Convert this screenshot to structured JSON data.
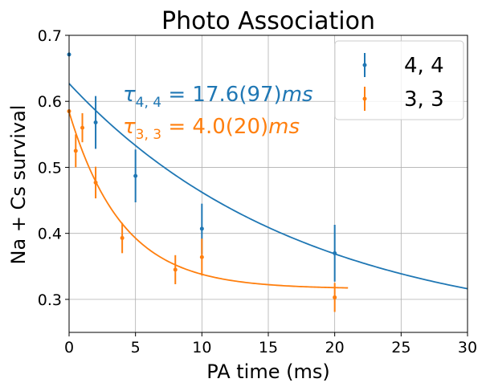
{
  "chart_data": {
    "type": "scatter",
    "title": "Photo Association",
    "xlabel": "PA time (ms)",
    "ylabel": "Na + Cs survival",
    "xlim": [
      0,
      30
    ],
    "ylim": [
      0.25,
      0.7
    ],
    "xticks": [
      0,
      5,
      10,
      15,
      20,
      25,
      30
    ],
    "yticks": [
      0.3,
      0.4,
      0.5,
      0.6,
      0.7
    ],
    "xtick_labels": [
      "0",
      "5",
      "10",
      "15",
      "20",
      "25",
      "30"
    ],
    "ytick_labels": [
      "0.3",
      "0.4",
      "0.5",
      "0.6",
      "0.7"
    ],
    "grid": true,
    "legend": "top-right",
    "series": [
      {
        "name": "4, 4",
        "color": "#1f77b4",
        "points": [
          {
            "x": 0,
            "y": 0.671,
            "err": 0.0
          },
          {
            "x": 2,
            "y": 0.568,
            "err": 0.04
          },
          {
            "x": 5,
            "y": 0.487,
            "err": 0.04
          },
          {
            "x": 10,
            "y": 0.407,
            "err": 0.038
          },
          {
            "x": 20,
            "y": 0.37,
            "err": 0.043
          }
        ],
        "fit": {
          "A": 0.38,
          "tau": 17.6,
          "C": 0.247,
          "xmax": 30
        },
        "annotation_label": "τ",
        "annotation_sub": "4, 4",
        "annotation_value": " = 17.6(97)",
        "annotation_unit": "ms"
      },
      {
        "name": "3, 3",
        "color": "#ff7f0e",
        "points": [
          {
            "x": 0,
            "y": 0.585,
            "err": 0.0
          },
          {
            "x": 0.5,
            "y": 0.525,
            "err": 0.025
          },
          {
            "x": 1,
            "y": 0.56,
            "err": 0.022
          },
          {
            "x": 2,
            "y": 0.477,
            "err": 0.024
          },
          {
            "x": 4,
            "y": 0.393,
            "err": 0.023
          },
          {
            "x": 8,
            "y": 0.345,
            "err": 0.022
          },
          {
            "x": 10,
            "y": 0.364,
            "err": 0.028
          },
          {
            "x": 20,
            "y": 0.303,
            "err": 0.022
          }
        ],
        "fit": {
          "A": 0.268,
          "tau": 4.0,
          "C": 0.316,
          "xmax": 21
        },
        "annotation_label": "τ",
        "annotation_sub": "3, 3",
        "annotation_value": " = 4.0(20)",
        "annotation_unit": "ms"
      }
    ]
  }
}
